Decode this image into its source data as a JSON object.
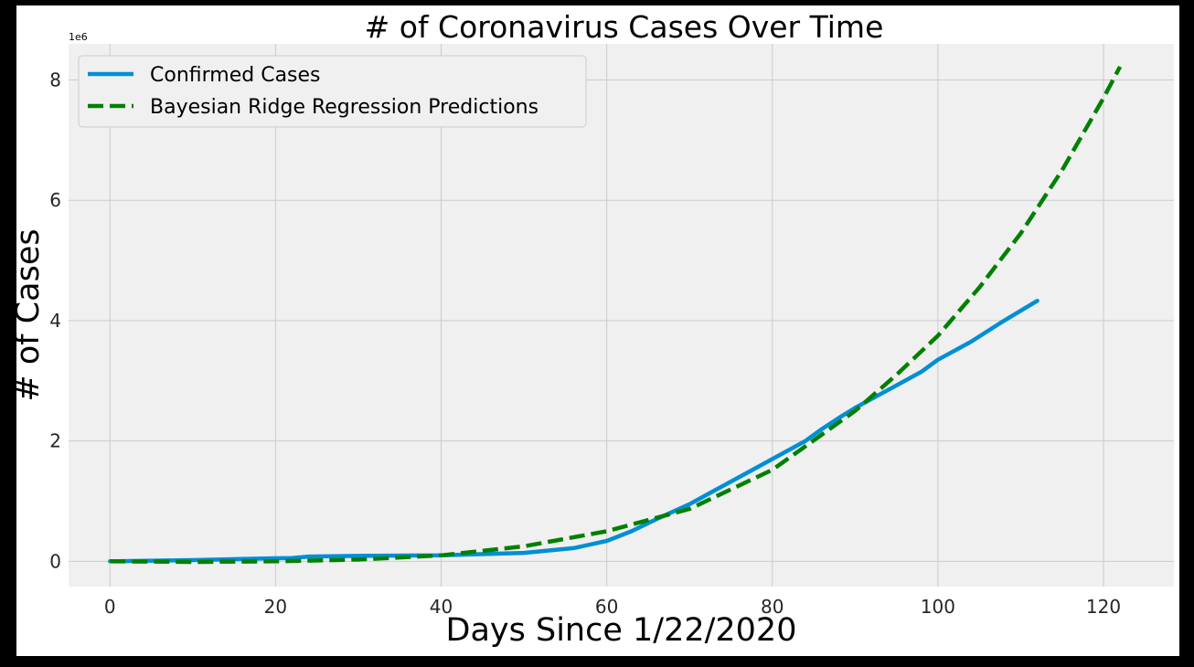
{
  "chart_data": {
    "type": "line",
    "title": "# of Coronavirus Cases Over Time",
    "xlabel": "Days Since 1/22/2020",
    "ylabel": "# of Cases",
    "y_offset_label": "1e6",
    "xlim": [
      -5,
      128.5
    ],
    "ylim": [
      -0.42,
      8.6
    ],
    "x_ticks": [
      0,
      20,
      40,
      60,
      80,
      100,
      120
    ],
    "y_ticks": [
      0,
      2,
      4,
      6,
      8
    ],
    "grid": true,
    "legend_position": "top-left",
    "series": [
      {
        "name": "Confirmed Cases",
        "color": "#008fd5",
        "style": "solid",
        "x": [
          0,
          10,
          20,
          22,
          24,
          30,
          40,
          50,
          56,
          60,
          63,
          66,
          70,
          72,
          76,
          80,
          82,
          84,
          86,
          88,
          90,
          94,
          98,
          100,
          104,
          108,
          112
        ],
        "y": [
          0.0,
          0.02,
          0.05,
          0.055,
          0.08,
          0.09,
          0.1,
          0.14,
          0.22,
          0.34,
          0.5,
          0.7,
          0.95,
          1.1,
          1.4,
          1.7,
          1.85,
          2.0,
          2.2,
          2.38,
          2.55,
          2.85,
          3.15,
          3.35,
          3.65,
          4.0,
          4.33
        ]
      },
      {
        "name": "Bayesian Ridge Regression Predictions",
        "color": "#008000",
        "style": "dashed",
        "x": [
          0,
          10,
          20,
          30,
          40,
          50,
          60,
          70,
          80,
          90,
          95,
          100,
          105,
          110,
          115,
          120,
          122
        ],
        "y": [
          0.0,
          -0.01,
          0.0,
          0.03,
          0.1,
          0.25,
          0.5,
          0.87,
          1.52,
          2.5,
          3.1,
          3.75,
          4.55,
          5.45,
          6.5,
          7.7,
          8.22
        ]
      }
    ]
  }
}
